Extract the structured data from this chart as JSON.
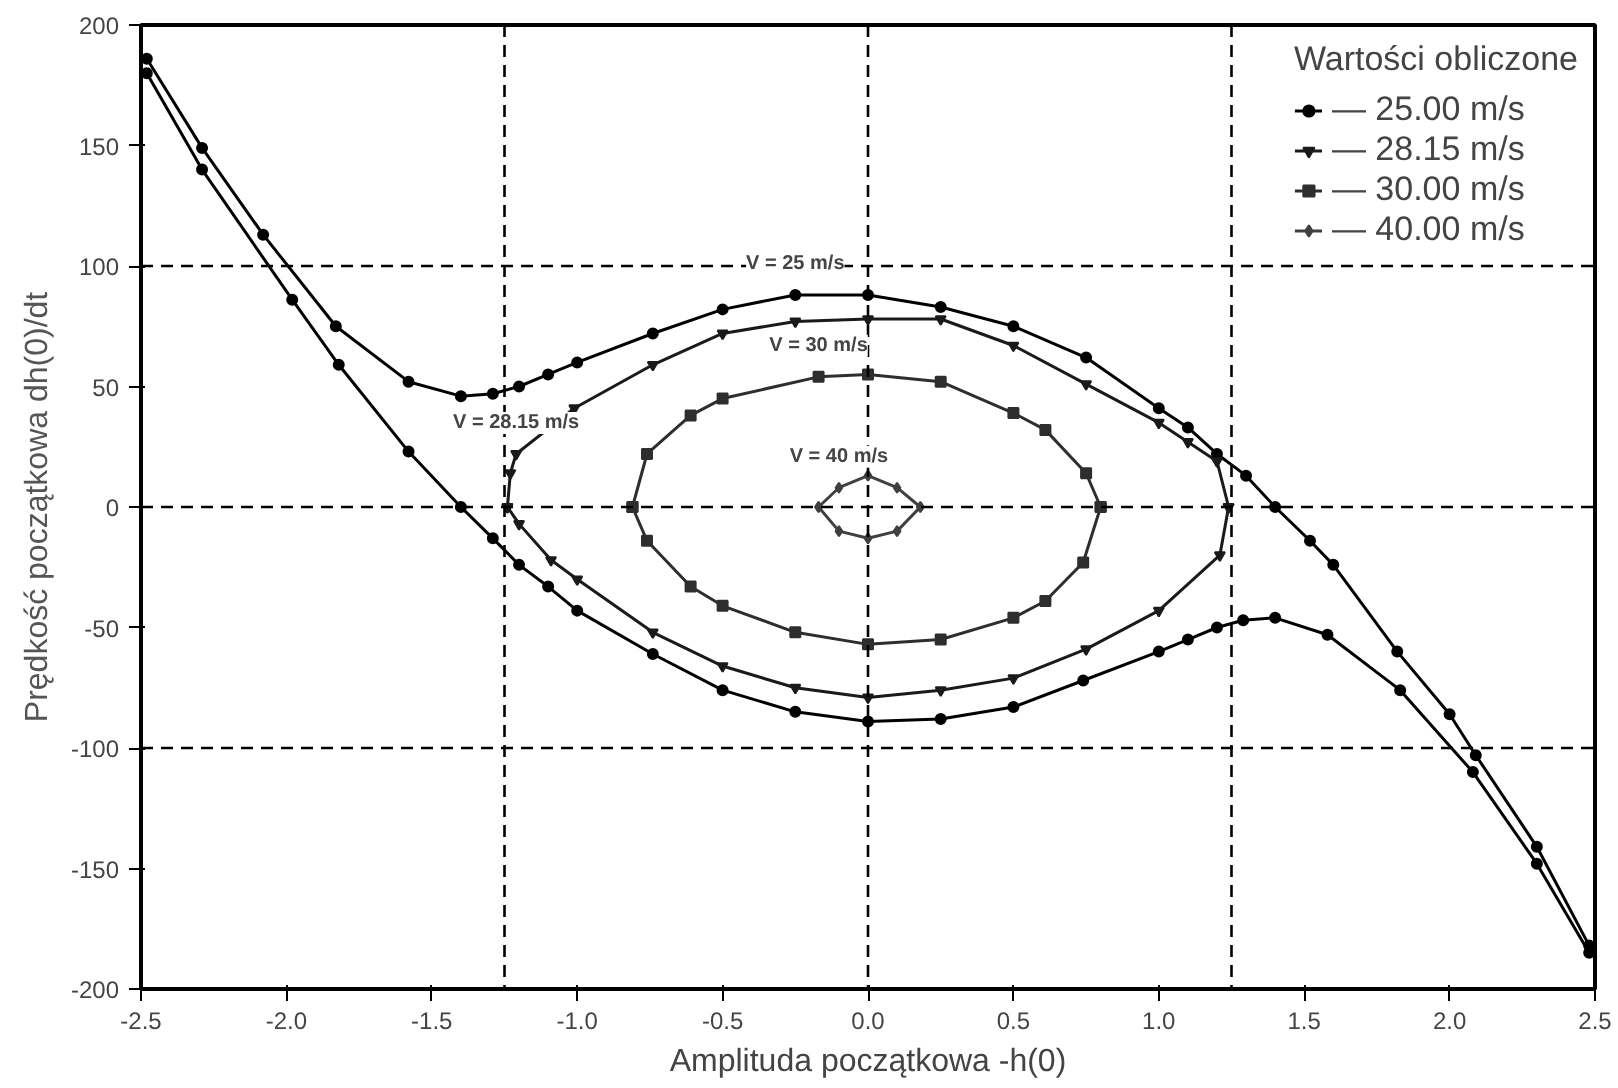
{
  "chart_data": {
    "type": "line",
    "xlabel": "Amplituda początkowa -h(0)",
    "ylabel": "Prędkość początkowa dh(0)/dt",
    "legend_title": "Wartości obliczone",
    "legend": "top right",
    "grid": false,
    "line_style": "solid",
    "xlim": [
      -2.5,
      2.5
    ],
    "ylim": [
      -200,
      200
    ],
    "xticks": [
      {
        "value": -2.5,
        "label": "-2.5"
      },
      {
        "value": -2.0,
        "label": "-2.0"
      },
      {
        "value": -1.5,
        "label": "-1.5"
      },
      {
        "value": -1.0,
        "label": "-1.0"
      },
      {
        "value": -0.5,
        "label": "-0.5"
      },
      {
        "value": 0,
        "label": "0.0"
      },
      {
        "value": 0.5,
        "label": "0.5"
      },
      {
        "value": 1.0,
        "label": "1.0"
      },
      {
        "value": 1.5,
        "label": "1.5"
      },
      {
        "value": 2.0,
        "label": "2.0"
      },
      {
        "value": 2.5,
        "label": "2.5"
      }
    ],
    "yticks": [
      -200,
      -150,
      -100,
      -50,
      0,
      50,
      100,
      150,
      200
    ],
    "ref_lines": [
      {
        "axis": "x",
        "value": -1.25,
        "line_style": "dashed"
      },
      {
        "axis": "x",
        "value": 0,
        "line_style": "dashed"
      },
      {
        "axis": "x",
        "value": 1.25,
        "line_style": "dashed"
      },
      {
        "axis": "y",
        "value": -100,
        "line_style": "dashed"
      },
      {
        "axis": "y",
        "value": 0,
        "line_style": "dashed"
      },
      {
        "axis": "y",
        "value": 100,
        "line_style": "dashed"
      }
    ],
    "annotations": [
      {
        "text": "V = 25 m/s",
        "x": -0.25,
        "y": 88
      },
      {
        "text": "V = 28.15 m/s",
        "x": -1.21,
        "y": 22
      },
      {
        "text": "V = 30 m/s",
        "x": -0.17,
        "y": 54
      },
      {
        "text": "V = 40 m/s",
        "x": -0.1,
        "y": 8
      }
    ],
    "series": [
      {
        "name": "— 25.00 m/s",
        "color": "#000000",
        "marker": "circle",
        "x": [
          -2.48,
          -2.29,
          -2.08,
          -1.83,
          -1.58,
          -1.4,
          -1.29,
          -1.2,
          -1.1,
          -1.0,
          -0.74,
          -0.5,
          -0.25,
          0,
          0.25,
          0.5,
          0.75,
          1.0,
          1.1,
          1.2,
          1.3,
          1.4,
          1.52,
          1.6,
          1.82,
          2.0,
          2.09,
          2.3,
          2.48,
          null,
          2.48,
          2.3,
          2.08,
          1.83,
          1.58,
          1.4,
          1.29,
          1.2,
          1.1,
          1.0,
          0.74,
          0.5,
          0.25,
          0,
          -0.25,
          -0.5,
          -0.74,
          -1.0,
          -1.1,
          -1.2,
          -1.29,
          -1.4,
          -1.58,
          -1.82,
          -1.98,
          -2.29,
          -2.48
        ],
        "values": [
          186,
          149,
          113,
          75,
          52,
          46,
          47,
          50,
          55,
          60,
          72,
          82,
          88,
          88,
          83,
          75,
          62,
          41,
          33,
          22,
          13,
          0,
          -14,
          -24,
          -60,
          -86,
          -103,
          -141,
          -182,
          null,
          -185,
          -148,
          -110,
          -76,
          -53,
          -46,
          -47,
          -50,
          -55,
          -60,
          -72,
          -83,
          -88,
          -89,
          -85,
          -76,
          -61,
          -43,
          -33,
          -24,
          -13,
          0,
          23,
          59,
          86,
          140,
          180
        ]
      },
      {
        "name": "— 28.15 m/s",
        "color": "#1a1a1a",
        "marker": "triangle",
        "x": [
          -1.24,
          -1.23,
          -1.21,
          -1.01,
          -0.74,
          -0.5,
          -0.25,
          0,
          0.25,
          0.5,
          0.75,
          1.0,
          1.1,
          1.2,
          1.24,
          null,
          1.24,
          1.21,
          1.0,
          0.75,
          0.5,
          0.25,
          0,
          -0.25,
          -0.5,
          -0.74,
          -1.0,
          -1.09,
          -1.2,
          -1.24
        ],
        "values": [
          0,
          14,
          22,
          41,
          59,
          72,
          77,
          78,
          78,
          67,
          51,
          35,
          27,
          19,
          0,
          null,
          0,
          -20,
          -43,
          -59,
          -71,
          -76,
          -79,
          -75,
          -66,
          -52,
          -30,
          -22,
          -7,
          0
        ]
      },
      {
        "name": "— 30.00 m/s",
        "color": "#2e2e2e",
        "marker": "square",
        "x": [
          -0.81,
          -0.76,
          -0.61,
          -0.5,
          -0.17,
          0,
          0.25,
          0.5,
          0.61,
          0.75,
          0.8,
          null,
          0.8,
          0.74,
          0.61,
          0.5,
          0.25,
          0,
          -0.25,
          -0.5,
          -0.61,
          -0.76,
          -0.81
        ],
        "values": [
          0,
          22,
          38,
          45,
          54,
          55,
          52,
          39,
          32,
          14,
          0,
          null,
          0,
          -23,
          -39,
          -46,
          -55,
          -57,
          -52,
          -41,
          -33,
          -14,
          0
        ]
      },
      {
        "name": "— 40.00 m/s",
        "color": "#404040",
        "marker": "diamond",
        "x": [
          -0.17,
          -0.1,
          0,
          0.1,
          0.18,
          null,
          0.18,
          0.1,
          0,
          -0.1,
          -0.17
        ],
        "values": [
          0,
          8,
          13,
          8,
          0,
          null,
          0,
          -10,
          -13,
          -10,
          0
        ]
      }
    ]
  }
}
